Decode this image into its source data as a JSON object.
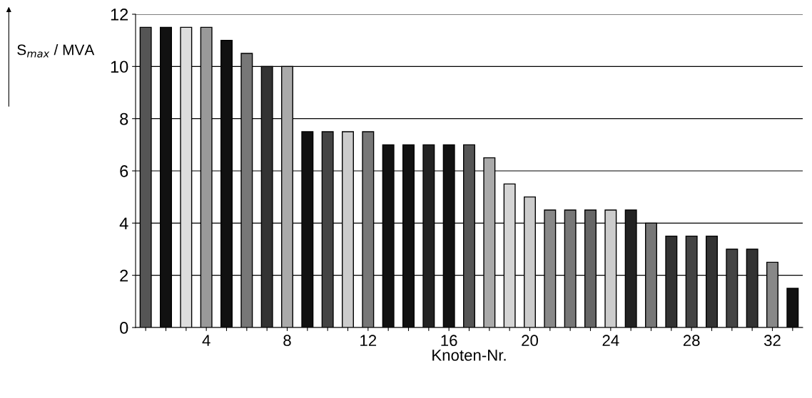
{
  "chart_data": {
    "type": "bar",
    "xlabel": "Knoten-Nr.",
    "ylabel": "S$_{max}$ / MVA",
    "categories": [
      null,
      null,
      null,
      "4",
      null,
      null,
      null,
      "8",
      null,
      null,
      null,
      "12",
      null,
      null,
      null,
      "16",
      null,
      null,
      null,
      "20",
      null,
      null,
      null,
      "24",
      null,
      null,
      null,
      "28",
      null,
      null,
      null,
      "32",
      null
    ],
    "values": [
      11.5,
      11.5,
      11.5,
      11.5,
      11,
      10.5,
      10,
      10,
      7.5,
      7.5,
      7.5,
      7.5,
      7,
      7,
      7,
      7,
      7,
      6.5,
      5.5,
      5,
      4.5,
      4.5,
      4.5,
      4.5,
      4.5,
      4,
      3.5,
      3.5,
      3.5,
      3,
      3,
      2.5,
      1.5
    ],
    "colors": [
      "#555555",
      "#111111",
      "#dddddd",
      "#999999",
      "#111111",
      "#777777",
      "#333333",
      "#aaaaaa",
      "#111111",
      "#444444",
      "#cccccc",
      "#777777",
      "#111111",
      "#111111",
      "#222222",
      "#111111",
      "#555555",
      "#aaaaaa",
      "#d5d5d5",
      "#cccccc",
      "#888888",
      "#777777",
      "#666666",
      "#cccccc",
      "#222222",
      "#777777",
      "#333333",
      "#444444",
      "#333333",
      "#444444",
      "#333333",
      "#888888",
      "#111111"
    ],
    "ylim": [
      0,
      12
    ],
    "yticks": [
      0,
      2,
      4,
      6,
      8,
      10,
      12
    ],
    "grid": "y"
  }
}
